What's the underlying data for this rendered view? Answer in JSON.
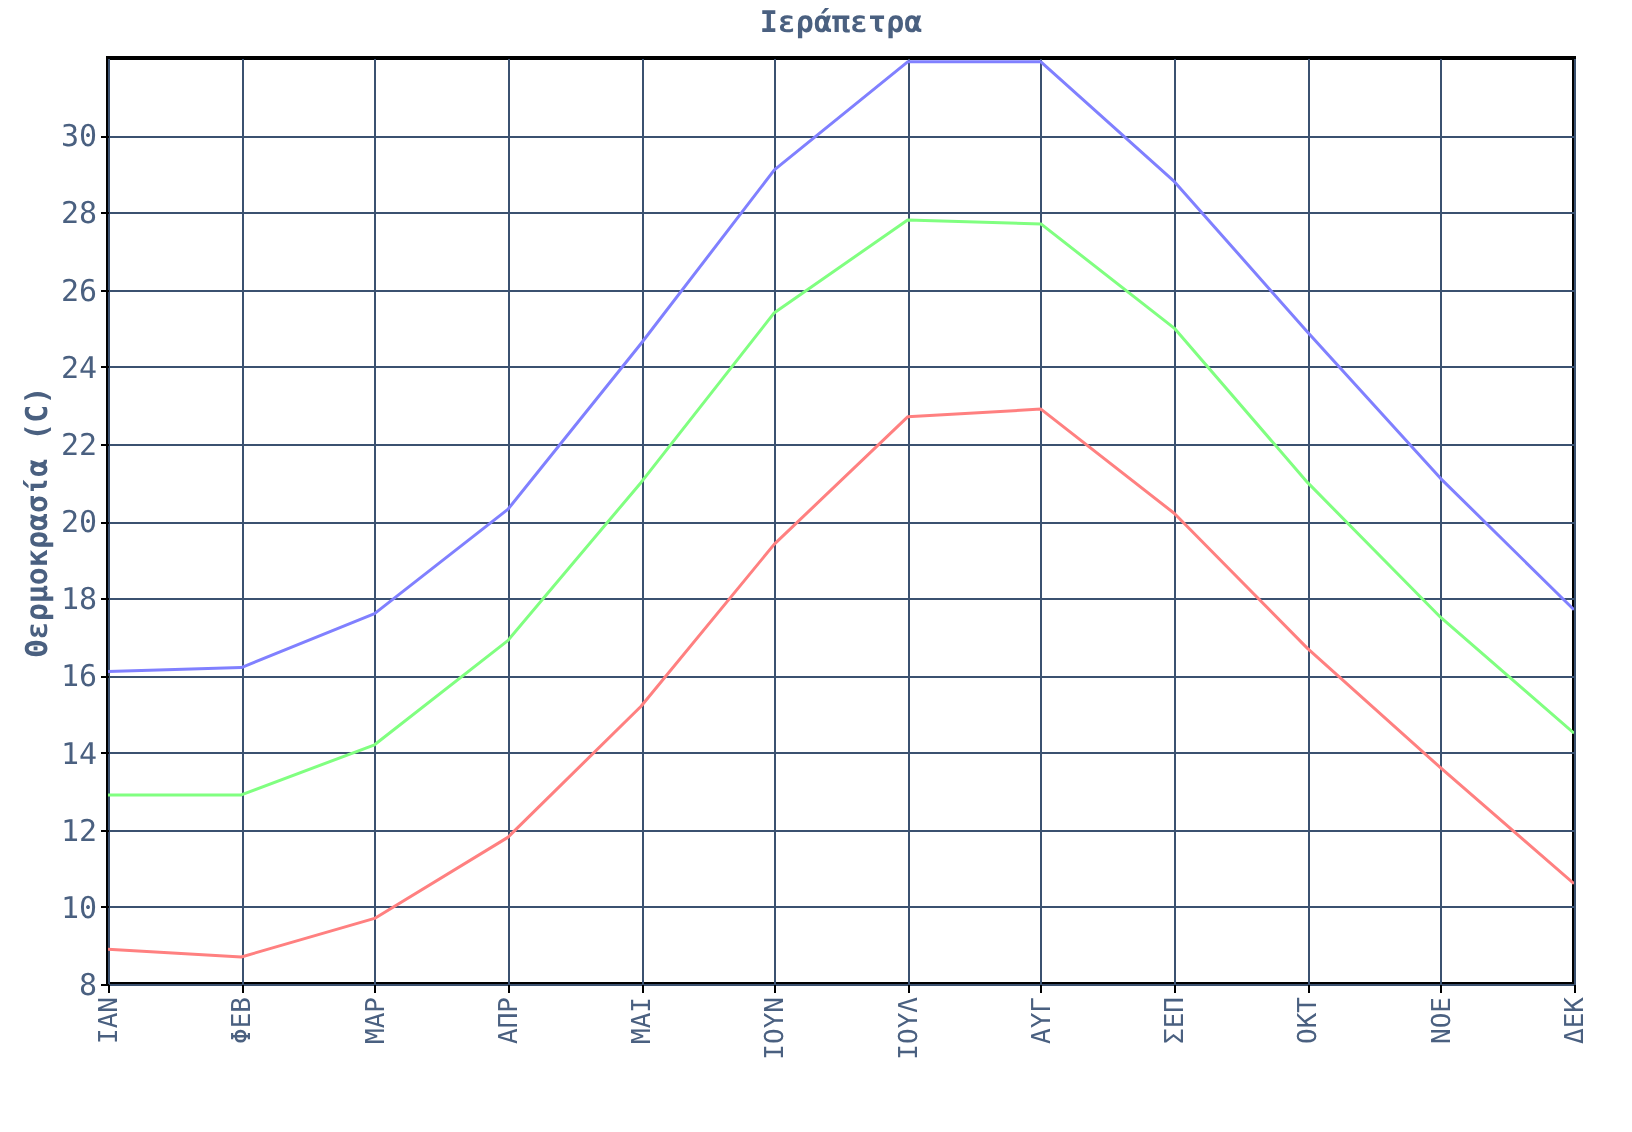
{
  "chart_data": {
    "type": "line",
    "title": "Ιεράπετρα",
    "ylabel": "Θερμοκρασία (C)",
    "categories": [
      "ΙΑΝ",
      "ΦΕΒ",
      "ΜΑΡ",
      "ΑΠΡ",
      "ΜΑΙ",
      "ΙΟΥΝ",
      "ΙΟΥΛ",
      "ΑΥΓ",
      "ΣΕΠ",
      "ΟΚΤ",
      "ΝΟΕ",
      "ΔΕΚ"
    ],
    "series": [
      {
        "color": "#8080ff",
        "values": [
          16.1,
          16.2,
          17.6,
          20.3,
          24.6,
          29.1,
          31.9,
          31.9,
          28.8,
          24.9,
          21.1,
          17.7
        ]
      },
      {
        "color": "#80ff80",
        "values": [
          12.9,
          12.9,
          14.2,
          16.9,
          21.0,
          25.4,
          27.8,
          27.7,
          25.0,
          21.0,
          17.5,
          14.5
        ]
      },
      {
        "color": "#ff8080",
        "values": [
          8.9,
          8.7,
          9.7,
          11.8,
          15.2,
          19.4,
          22.7,
          22.9,
          20.2,
          16.7,
          13.6,
          10.6
        ]
      }
    ],
    "ylim": [
      8,
      32
    ],
    "yticks": [
      8,
      10,
      12,
      14,
      16,
      18,
      20,
      22,
      24,
      26,
      28,
      30
    ],
    "grid": true,
    "legend": false,
    "marker": "none",
    "line_style": "solid"
  }
}
